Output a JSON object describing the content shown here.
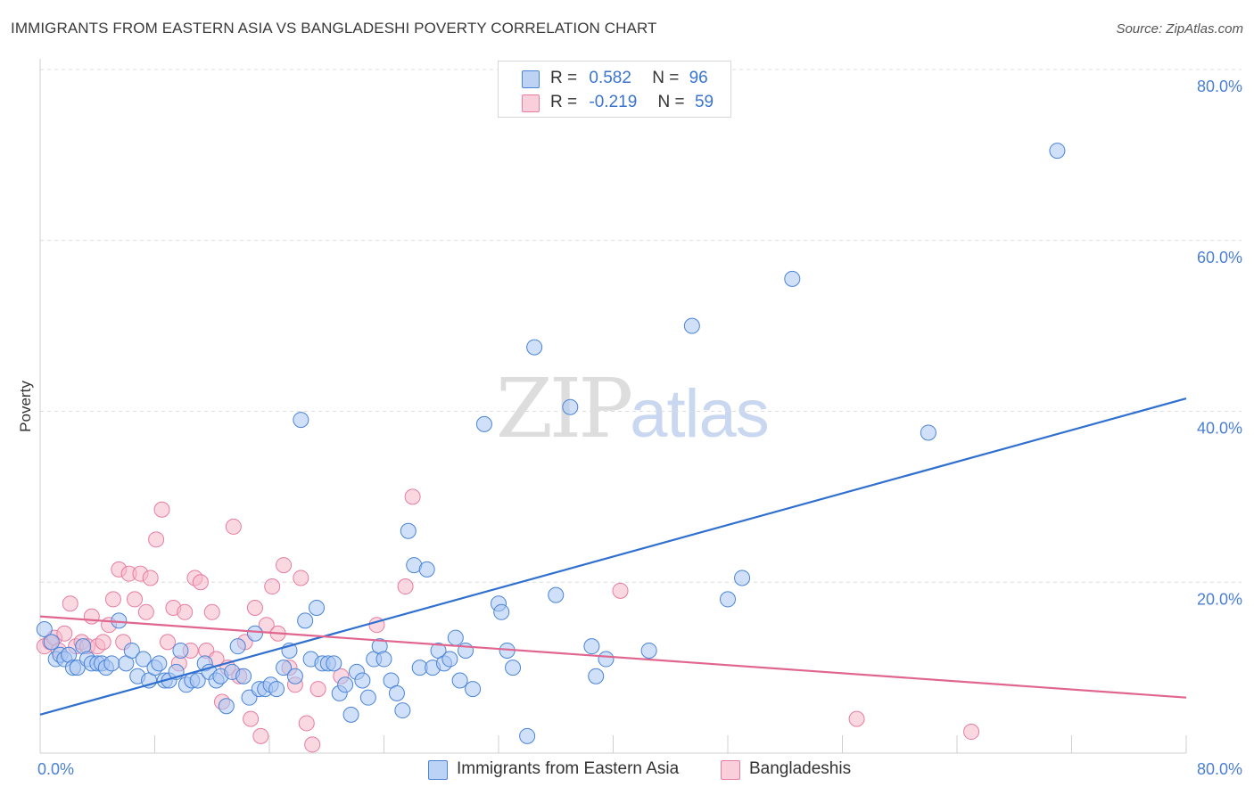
{
  "title": "IMMIGRANTS FROM EASTERN ASIA VS BANGLADESHI POVERTY CORRELATION CHART",
  "source": "Source: ZipAtlas.com",
  "watermark": {
    "zip": "ZIP",
    "atlas": "atlas"
  },
  "legend": {
    "rows": [
      {
        "r_label": "R =",
        "r_value": "0.582",
        "n_label": "N =",
        "n_value": "96",
        "color": "#a9c6f2"
      },
      {
        "r_label": "R =",
        "r_value": "-0.219",
        "n_label": "N =",
        "n_value": "59",
        "color": "#f6b8cb"
      }
    ]
  },
  "bottom_legend": [
    {
      "label": "Immigrants from Eastern Asia",
      "color": "#a9c6f2"
    },
    {
      "label": "Bangladeshis",
      "color": "#f6b8cb"
    }
  ],
  "chart_data": {
    "type": "scatter",
    "title": "IMMIGRANTS FROM EASTERN ASIA VS BANGLADESHI POVERTY CORRELATION CHART",
    "xlabel": "",
    "ylabel": "Poverty",
    "xlim": [
      0,
      80
    ],
    "ylim": [
      0,
      80
    ],
    "x_tick_labels": [
      "0.0%",
      "80.0%"
    ],
    "y_tick_labels": [
      {
        "value": 80,
        "label": "80.0%"
      },
      {
        "value": 60,
        "label": "60.0%"
      },
      {
        "value": 40,
        "label": "40.0%"
      },
      {
        "value": 20,
        "label": "20.0%"
      }
    ],
    "grid": "horizontal dashed",
    "series": [
      {
        "name": "Immigrants from Eastern Asia",
        "color": "#4a84d8",
        "fill": "#a9c6f2",
        "trend": {
          "x": [
            0,
            80
          ],
          "y": [
            4.5,
            41.5
          ],
          "color": "#2f6fd0"
        },
        "points": [
          [
            0.3,
            14.5
          ],
          [
            0.8,
            13.0
          ],
          [
            1.1,
            11.0
          ],
          [
            1.4,
            11.5
          ],
          [
            1.7,
            11.0
          ],
          [
            2.0,
            11.5
          ],
          [
            2.3,
            10.0
          ],
          [
            2.6,
            10.0
          ],
          [
            3.0,
            12.5
          ],
          [
            3.3,
            11.0
          ],
          [
            3.6,
            10.5
          ],
          [
            4.0,
            10.5
          ],
          [
            4.3,
            10.5
          ],
          [
            4.6,
            10.0
          ],
          [
            5.0,
            10.5
          ],
          [
            5.5,
            15.5
          ],
          [
            6.0,
            10.5
          ],
          [
            6.4,
            12.0
          ],
          [
            6.8,
            9.0
          ],
          [
            7.2,
            11.0
          ],
          [
            7.6,
            8.5
          ],
          [
            8.0,
            10.0
          ],
          [
            8.3,
            10.5
          ],
          [
            8.7,
            8.5
          ],
          [
            9.0,
            8.5
          ],
          [
            9.5,
            9.5
          ],
          [
            9.8,
            12.0
          ],
          [
            10.2,
            8.0
          ],
          [
            10.6,
            8.5
          ],
          [
            11.0,
            8.5
          ],
          [
            11.5,
            10.5
          ],
          [
            11.8,
            9.5
          ],
          [
            12.3,
            8.5
          ],
          [
            12.6,
            9.0
          ],
          [
            13.0,
            5.5
          ],
          [
            13.4,
            9.5
          ],
          [
            13.8,
            12.5
          ],
          [
            14.2,
            9.0
          ],
          [
            14.6,
            6.5
          ],
          [
            15.0,
            14.0
          ],
          [
            15.3,
            7.5
          ],
          [
            15.7,
            7.5
          ],
          [
            16.1,
            8.0
          ],
          [
            16.5,
            7.5
          ],
          [
            17.0,
            10.0
          ],
          [
            17.4,
            12.0
          ],
          [
            17.8,
            9.0
          ],
          [
            18.2,
            39.0
          ],
          [
            18.5,
            15.5
          ],
          [
            18.9,
            11.0
          ],
          [
            19.3,
            17.0
          ],
          [
            19.7,
            10.5
          ],
          [
            20.1,
            10.5
          ],
          [
            20.5,
            10.5
          ],
          [
            20.9,
            7.0
          ],
          [
            21.3,
            8.0
          ],
          [
            21.7,
            4.5
          ],
          [
            22.1,
            9.5
          ],
          [
            22.5,
            8.5
          ],
          [
            22.9,
            6.5
          ],
          [
            23.3,
            11.0
          ],
          [
            23.7,
            12.5
          ],
          [
            24.0,
            11.0
          ],
          [
            24.5,
            8.5
          ],
          [
            24.9,
            7.0
          ],
          [
            25.3,
            5.0
          ],
          [
            25.7,
            26.0
          ],
          [
            26.1,
            22.0
          ],
          [
            26.5,
            10.0
          ],
          [
            27.0,
            21.5
          ],
          [
            27.4,
            10.0
          ],
          [
            27.8,
            12.0
          ],
          [
            28.2,
            10.5
          ],
          [
            28.6,
            11.0
          ],
          [
            29.0,
            13.5
          ],
          [
            29.3,
            8.5
          ],
          [
            29.7,
            12.0
          ],
          [
            30.2,
            7.5
          ],
          [
            31.0,
            38.5
          ],
          [
            32.0,
            17.5
          ],
          [
            32.2,
            16.5
          ],
          [
            32.6,
            12.0
          ],
          [
            33.0,
            10.0
          ],
          [
            34.0,
            2.0
          ],
          [
            34.5,
            47.5
          ],
          [
            36.0,
            18.5
          ],
          [
            37.0,
            40.5
          ],
          [
            38.5,
            12.5
          ],
          [
            38.8,
            9.0
          ],
          [
            39.5,
            11.0
          ],
          [
            42.5,
            12.0
          ],
          [
            45.5,
            50.0
          ],
          [
            48.0,
            18.0
          ],
          [
            49.0,
            20.5
          ],
          [
            52.5,
            55.5
          ],
          [
            62.0,
            37.5
          ],
          [
            71.0,
            70.5
          ]
        ]
      },
      {
        "name": "Bangladeshis",
        "color": "#e87ca0",
        "fill": "#f6b8cb",
        "trend": {
          "x": [
            0,
            80
          ],
          "y": [
            16.0,
            6.5
          ],
          "color": "#e0668f"
        },
        "points": [
          [
            0.3,
            12.5
          ],
          [
            0.7,
            13.0
          ],
          [
            1.0,
            13.5
          ],
          [
            1.3,
            12.0
          ],
          [
            1.7,
            14.0
          ],
          [
            2.1,
            17.5
          ],
          [
            2.5,
            12.5
          ],
          [
            2.9,
            13.0
          ],
          [
            3.3,
            12.5
          ],
          [
            3.6,
            16.0
          ],
          [
            4.0,
            12.5
          ],
          [
            4.4,
            13.0
          ],
          [
            4.8,
            15.0
          ],
          [
            5.1,
            18.0
          ],
          [
            5.5,
            21.5
          ],
          [
            5.8,
            13.0
          ],
          [
            6.2,
            21.0
          ],
          [
            6.6,
            18.0
          ],
          [
            7.0,
            21.0
          ],
          [
            7.4,
            16.5
          ],
          [
            7.7,
            20.5
          ],
          [
            8.1,
            25.0
          ],
          [
            8.5,
            28.5
          ],
          [
            8.9,
            13.0
          ],
          [
            9.3,
            17.0
          ],
          [
            9.7,
            10.5
          ],
          [
            10.1,
            16.5
          ],
          [
            10.5,
            12.0
          ],
          [
            10.8,
            20.5
          ],
          [
            11.2,
            20.0
          ],
          [
            11.6,
            12.0
          ],
          [
            12.0,
            16.5
          ],
          [
            12.3,
            11.0
          ],
          [
            12.7,
            6.0
          ],
          [
            13.1,
            10.0
          ],
          [
            13.5,
            26.5
          ],
          [
            13.9,
            9.0
          ],
          [
            14.3,
            13.0
          ],
          [
            14.7,
            4.0
          ],
          [
            15.0,
            17.0
          ],
          [
            15.4,
            2.0
          ],
          [
            15.8,
            15.0
          ],
          [
            16.2,
            19.5
          ],
          [
            16.6,
            14.0
          ],
          [
            17.0,
            22.0
          ],
          [
            17.4,
            10.0
          ],
          [
            17.8,
            8.0
          ],
          [
            18.2,
            20.5
          ],
          [
            18.6,
            3.5
          ],
          [
            19.0,
            1.0
          ],
          [
            19.4,
            7.5
          ],
          [
            21.0,
            9.0
          ],
          [
            23.5,
            15.0
          ],
          [
            25.5,
            19.5
          ],
          [
            26.0,
            30.0
          ],
          [
            40.5,
            19.0
          ],
          [
            57.0,
            4.0
          ],
          [
            65.0,
            2.5
          ]
        ]
      }
    ]
  }
}
